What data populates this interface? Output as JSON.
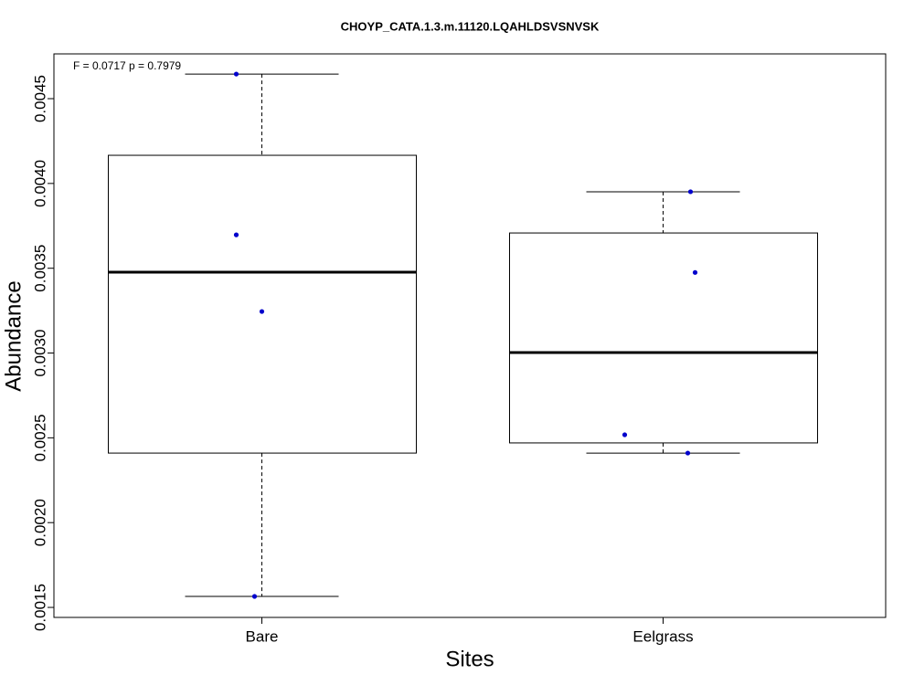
{
  "chart_data": {
    "type": "boxplot",
    "title": "CHOYP_CATA.1.3.m.11120.LQAHLDSVSNVSK",
    "annotation": "F = 0.0717 p = 0.7979",
    "xlabel": "Sites",
    "ylabel": "Abundance",
    "categories": [
      "Bare",
      "Eelgrass"
    ],
    "boxes": [
      {
        "min": 0.001565,
        "q1": 0.00241,
        "median": 0.003477,
        "q3": 0.004166,
        "max": 0.004645,
        "points": [
          0.004645,
          0.003697,
          0.003245,
          0.001565
        ]
      },
      {
        "min": 0.00241,
        "q1": 0.00247,
        "median": 0.003003,
        "q3": 0.003708,
        "max": 0.003951,
        "points": [
          0.003951,
          0.003475,
          0.002518,
          0.00241
        ]
      }
    ],
    "point_color": "#0000cc",
    "ylim": [
      0.001441,
      0.004764
    ],
    "yticks": [
      0.0015,
      {
        "value": 0.002,
        "label": "0.0020"
      },
      0.0025,
      {
        "value": 0.003,
        "label": "0.0030"
      },
      0.0035,
      {
        "value": 0.004,
        "label": "0.0040"
      },
      0.0045
    ]
  }
}
